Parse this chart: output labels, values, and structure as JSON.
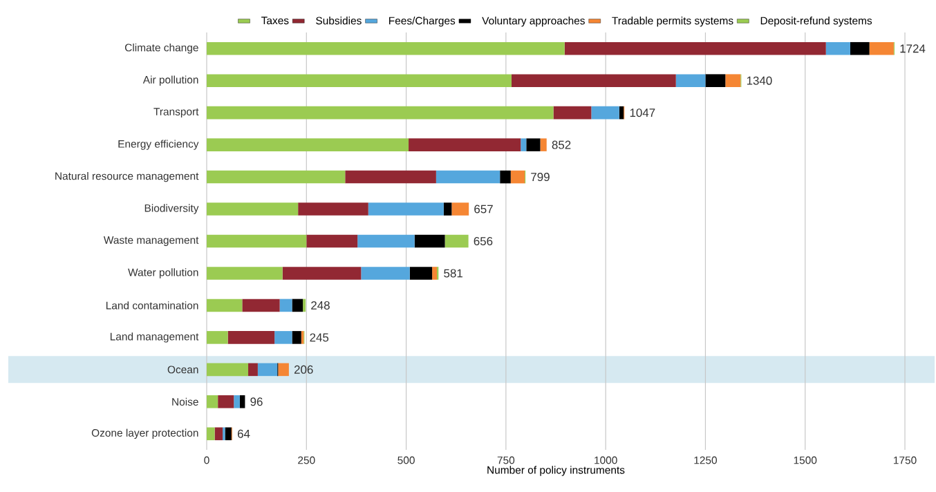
{
  "chart_data": {
    "type": "bar",
    "orientation": "horizontal",
    "stacked": true,
    "xlabel": "Number of policy instruments",
    "categories": [
      "Climate change",
      "Air pollution",
      "Transport",
      "Energy efficiency",
      "Natural resource management",
      "Biodiversity",
      "Waste management",
      "Water pollution",
      "Land contamination",
      "Land management",
      "Ocean",
      "Noise",
      "Ozone layer protection"
    ],
    "series": [
      {
        "name": "Taxes",
        "color": "#9bcb52",
        "values": [
          897,
          764,
          869,
          506,
          347,
          229,
          250,
          190,
          89,
          53,
          104,
          28,
          20
        ]
      },
      {
        "name": "Subsidies",
        "color": "#922833",
        "values": [
          655,
          412,
          95,
          281,
          228,
          176,
          128,
          197,
          94,
          117,
          24,
          40,
          20
        ]
      },
      {
        "name": "Fees/Charges",
        "color": "#55a7dd",
        "values": [
          61,
          74,
          70,
          14,
          160,
          189,
          143,
          122,
          31,
          44,
          49,
          15,
          6
        ]
      },
      {
        "name": "Voluntary approaches",
        "color": "#000000",
        "values": [
          48,
          50,
          11,
          35,
          27,
          20,
          76,
          56,
          27,
          23,
          2,
          13,
          16
        ]
      },
      {
        "name": "Tradable permits systems",
        "color": "#f58634",
        "values": [
          61,
          38,
          2,
          16,
          35,
          43,
          0,
          12,
          0,
          6,
          27,
          0,
          2
        ]
      },
      {
        "name": "Deposit-refund systems",
        "color": "#9bcb52",
        "values": [
          2,
          2,
          0,
          0,
          2,
          0,
          59,
          4,
          7,
          2,
          0,
          0,
          0
        ]
      }
    ],
    "totals": [
      "1724",
      "1340",
      "1047",
      "852",
      "799",
      "657",
      "656",
      "581",
      "248",
      "245",
      "206",
      "96",
      "64"
    ],
    "xlim": [
      0,
      1750
    ],
    "xticks": [
      0,
      250,
      500,
      750,
      1000,
      1250,
      1500,
      1750
    ],
    "grid": "x",
    "legend": "top",
    "bands": [
      {
        "axis": "y",
        "from": "Ocean",
        "to": "Ocean",
        "color": "#d6e9f1"
      }
    ]
  }
}
